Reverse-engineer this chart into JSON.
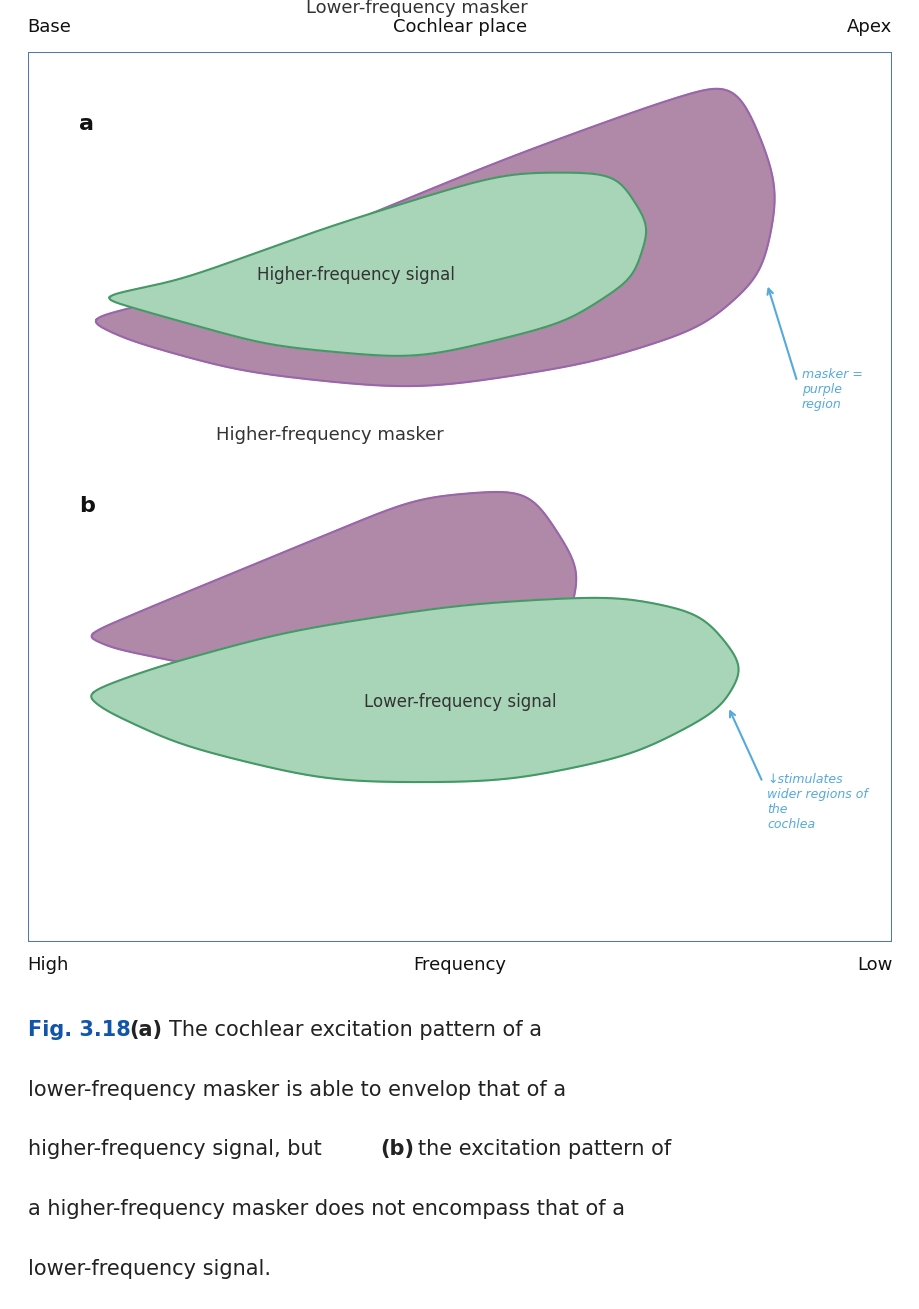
{
  "bg_color": "#ffffff",
  "border_color": "#5577aa",
  "top_label_left": "Base",
  "top_label_center": "Cochlear place",
  "top_label_right": "Apex",
  "bottom_label_left": "High",
  "bottom_label_center": "Frequency",
  "bottom_label_right": "Low",
  "label_a": "a",
  "label_b": "b",
  "panel_a_title": "Lower-frequency masker",
  "panel_a_signal": "Higher-frequency signal",
  "panel_b_title": "Higher-frequency masker",
  "panel_b_signal": "Lower-frequency signal",
  "purple_fill": "#b088a8",
  "purple_edge": "#9966aa",
  "green_fill": "#a8d4b8",
  "green_edge": "#449966",
  "annotation1_text": "masker =\npurple\nregion",
  "annotation2_text": "↓stimulates\nwider regions of\nthe\ncochlea",
  "annotation_color": "#55aadd",
  "fig_label": "Fig. 3.18",
  "fig_label_color": "#1155aa",
  "fig_text_color": "#222222"
}
